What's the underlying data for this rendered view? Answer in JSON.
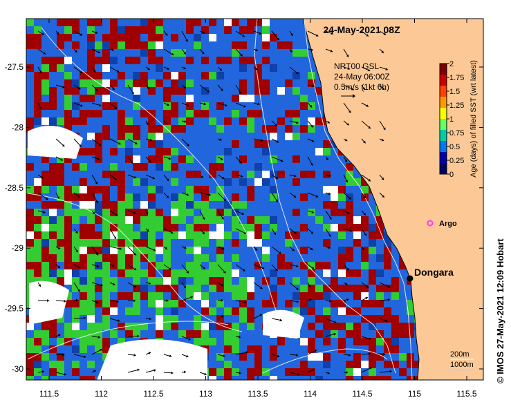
{
  "title": "24-May-2021 08Z",
  "current_info": {
    "line1": "NRT00 GSL",
    "line2": "24-May 06:00Z",
    "line3": "0.5m/s (1kt 6h)"
  },
  "colorbar": {
    "title": "Age (days) of filled SST (wrt latest)",
    "ticks": [
      "2",
      "1.75",
      "1.5",
      "1.25",
      "1",
      "0.75",
      "0.5",
      "0.25",
      "0"
    ],
    "colors": [
      "#7f0000",
      "#cc0000",
      "#ff4000",
      "#ff9900",
      "#ffff00",
      "#66ff66",
      "#00ccaa",
      "#0077ee",
      "#0000aa",
      "#000066"
    ]
  },
  "axes": {
    "x_ticks": [
      "111.5",
      "112",
      "112.5",
      "113",
      "113.5",
      "114",
      "114.5",
      "115",
      "115.5"
    ],
    "y_ticks": [
      "-27.5",
      "-28",
      "-28.5",
      "-29",
      "-29.5",
      "-30"
    ]
  },
  "places": {
    "dongara": "Dongara",
    "argo": "Argo"
  },
  "depth_legend": {
    "line1": "200m",
    "line2": "1000m"
  },
  "copyright": "© IMOS 27-May-2021 12:09 Hobart",
  "colors": {
    "land": "#fcc996",
    "ocean_red": "#a00000",
    "ocean_blue": "#2266dd",
    "ocean_green": "#33cc33",
    "argo": "#ff33ff"
  }
}
